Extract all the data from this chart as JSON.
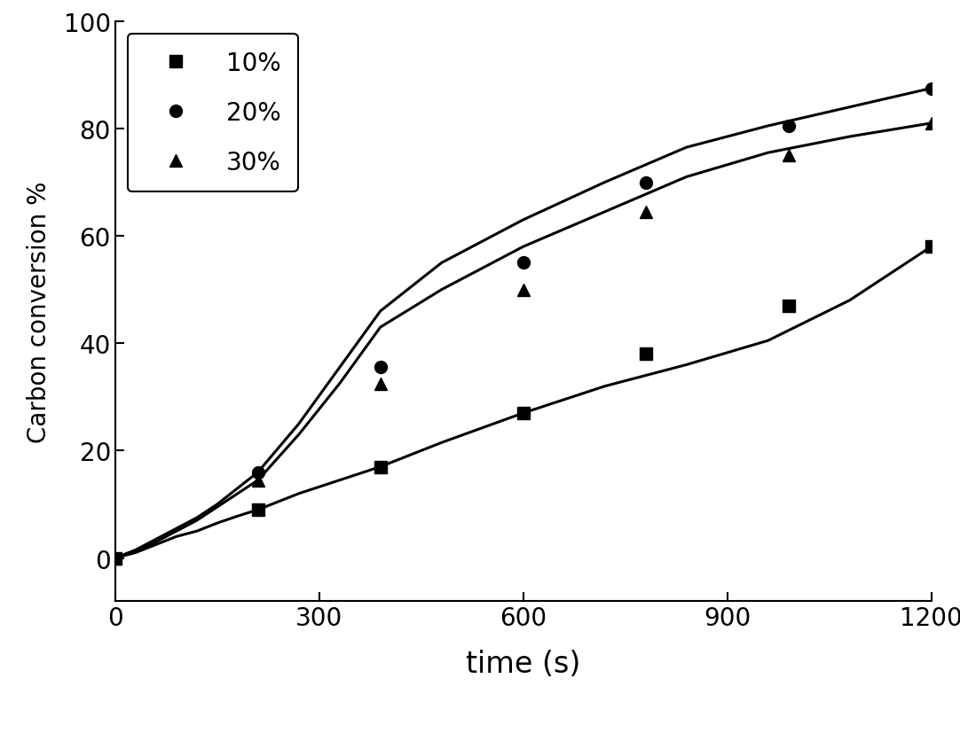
{
  "title": "",
  "xlabel": "time (s)",
  "ylabel": "Carbon conversion %",
  "xlim": [
    0,
    1200
  ],
  "ylim": [
    -8,
    100
  ],
  "xticks": [
    0,
    300,
    600,
    900,
    1200
  ],
  "yticks": [
    0,
    20,
    40,
    60,
    80,
    100
  ],
  "background_color": "#ffffff",
  "series": [
    {
      "label": "10%",
      "marker": "s",
      "x": [
        0,
        210,
        390,
        600,
        780,
        990,
        1200
      ],
      "y": [
        0,
        9.0,
        17.0,
        27.0,
        38.0,
        47.0,
        58.0
      ]
    },
    {
      "label": "20%",
      "marker": "o",
      "x": [
        0,
        210,
        390,
        600,
        780,
        990,
        1200
      ],
      "y": [
        0,
        16.0,
        35.5,
        55.0,
        70.0,
        80.5,
        87.5
      ]
    },
    {
      "label": "30%",
      "marker": "^",
      "x": [
        0,
        210,
        390,
        600,
        780,
        990,
        1200
      ],
      "y": [
        0,
        14.5,
        32.5,
        50.0,
        64.5,
        75.0,
        81.0
      ]
    }
  ],
  "smooth_x_extra": [
    0,
    30,
    60,
    90,
    120,
    150,
    180,
    210,
    270,
    330,
    390,
    480,
    600,
    720,
    840,
    960,
    1080,
    1200
  ],
  "series_smooth": [
    [
      0,
      1.0,
      2.5,
      4.0,
      5.0,
      6.5,
      7.8,
      9.0,
      12.0,
      14.5,
      17.0,
      21.5,
      27.0,
      32.0,
      36.0,
      40.5,
      48.0,
      58.0
    ],
    [
      0,
      1.5,
      3.5,
      5.5,
      7.5,
      10.0,
      13.0,
      16.0,
      25.0,
      35.5,
      46.0,
      55.0,
      63.0,
      70.0,
      76.5,
      80.5,
      84.0,
      87.5
    ],
    [
      0,
      1.2,
      3.0,
      5.0,
      7.0,
      9.5,
      12.0,
      14.5,
      23.0,
      32.5,
      43.0,
      50.0,
      58.0,
      64.5,
      71.0,
      75.5,
      78.5,
      81.0
    ]
  ],
  "line_color": "#000000",
  "marker_color": "#000000",
  "marker_size": 10,
  "line_width": 2.2,
  "xlabel_fontsize": 24,
  "ylabel_fontsize": 20,
  "tick_fontsize": 20,
  "legend_fontsize": 20,
  "legend_loc": "upper left"
}
